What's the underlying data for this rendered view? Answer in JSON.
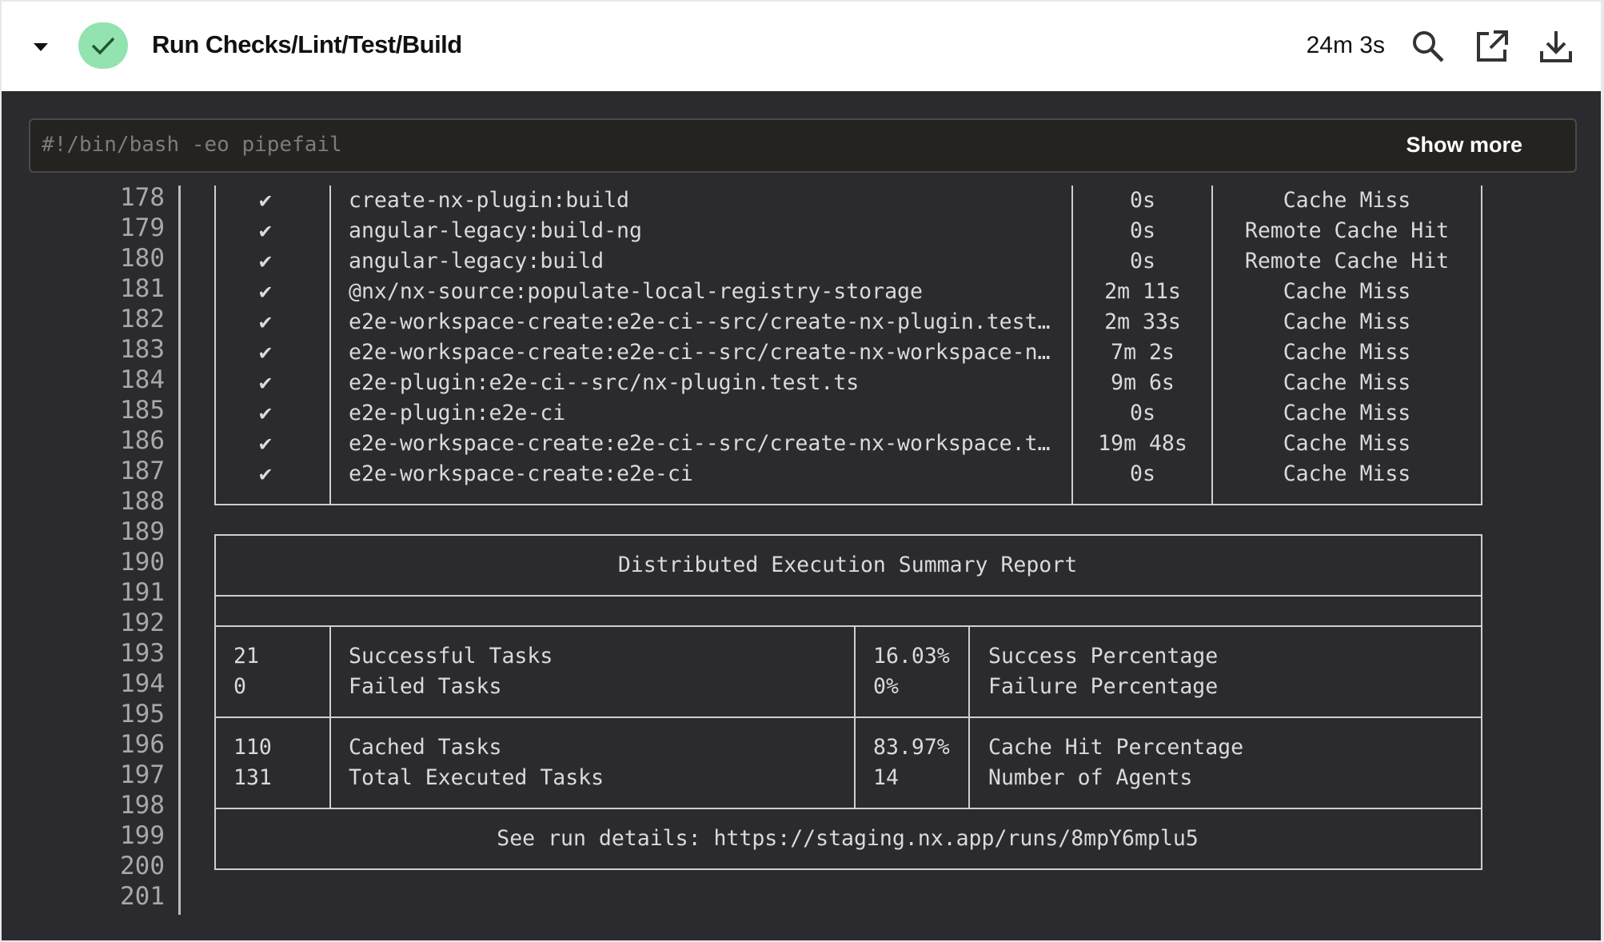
{
  "header": {
    "title": "Run Checks/Lint/Test/Build",
    "duration": "24m 3s",
    "status": "success",
    "status_color": "#93e3b0",
    "icons": [
      "chevron-down-icon",
      "check-icon",
      "search-icon",
      "external-link-icon",
      "download-icon"
    ]
  },
  "command": {
    "text": "#!/bin/bash -eo pipefail",
    "show_more_label": "Show more"
  },
  "line_numbers": [
    "178",
    "179",
    "180",
    "181",
    "182",
    "183",
    "184",
    "185",
    "186",
    "187",
    "188",
    "189",
    "190",
    "191",
    "192",
    "193",
    "194",
    "195",
    "196",
    "197",
    "198",
    "199",
    "200",
    "201"
  ],
  "tasks": [
    {
      "mark": "✔",
      "name": "create-nx-plugin:build",
      "duration": "0s",
      "cache": "Cache Miss"
    },
    {
      "mark": "✔",
      "name": "angular-legacy:build-ng",
      "duration": "0s",
      "cache": "Remote Cache Hit"
    },
    {
      "mark": "✔",
      "name": "angular-legacy:build",
      "duration": "0s",
      "cache": "Remote Cache Hit"
    },
    {
      "mark": "✔",
      "name": "@nx/nx-source:populate-local-registry-storage",
      "duration": "2m 11s",
      "cache": "Cache Miss"
    },
    {
      "mark": "✔",
      "name": "e2e-workspace-create:e2e-ci--src/create-nx-plugin.test…",
      "duration": "2m 33s",
      "cache": "Cache Miss"
    },
    {
      "mark": "✔",
      "name": "e2e-workspace-create:e2e-ci--src/create-nx-workspace-n…",
      "duration": "7m 2s",
      "cache": "Cache Miss"
    },
    {
      "mark": "✔",
      "name": "e2e-plugin:e2e-ci--src/nx-plugin.test.ts",
      "duration": "9m 6s",
      "cache": "Cache Miss"
    },
    {
      "mark": "✔",
      "name": "e2e-plugin:e2e-ci",
      "duration": "0s",
      "cache": "Cache Miss"
    },
    {
      "mark": "✔",
      "name": "e2e-workspace-create:e2e-ci--src/create-nx-workspace.t…",
      "duration": "19m 48s",
      "cache": "Cache Miss"
    },
    {
      "mark": "✔",
      "name": "e2e-workspace-create:e2e-ci",
      "duration": "0s",
      "cache": "Cache Miss"
    }
  ],
  "summary": {
    "title": "Distributed Execution Summary Report",
    "rows": [
      {
        "count": "21",
        "label": "Successful Tasks",
        "pct": "16.03%",
        "pct_label": "Success Percentage"
      },
      {
        "count": "0",
        "label": "Failed Tasks",
        "pct": "0%",
        "pct_label": "Failure Percentage"
      },
      {
        "count": "110",
        "label": "Cached Tasks",
        "pct": "83.97%",
        "pct_label": "Cache Hit Percentage"
      },
      {
        "count": "131",
        "label": "Total Executed Tasks",
        "pct": "14",
        "pct_label": "Number of Agents"
      }
    ],
    "details": "See run details: https://staging.nx.app/runs/8mpY6mplu5"
  }
}
